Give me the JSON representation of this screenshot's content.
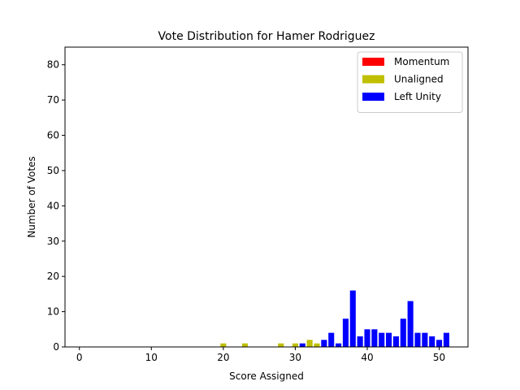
{
  "chart_data": {
    "type": "bar",
    "title": "Vote Distribution for Hamer Rodriguez",
    "xlabel": "Score Assigned",
    "ylabel": "Number of Votes",
    "xlim": [
      -2,
      54
    ],
    "ylim": [
      0,
      85
    ],
    "xticks": [
      0,
      10,
      20,
      30,
      40,
      50
    ],
    "yticks": [
      0,
      10,
      20,
      30,
      40,
      50,
      60,
      70,
      80
    ],
    "grid": false,
    "legend_position": "top-right",
    "series": [
      {
        "name": "Momentum",
        "color": "#ff0000",
        "points": []
      },
      {
        "name": "Unaligned",
        "color": "#bfbf00",
        "points": [
          {
            "x": 20,
            "y": 1
          },
          {
            "x": 23,
            "y": 1
          },
          {
            "x": 28,
            "y": 1
          },
          {
            "x": 30,
            "y": 1
          },
          {
            "x": 32,
            "y": 2
          },
          {
            "x": 33,
            "y": 1
          }
        ]
      },
      {
        "name": "Left Unity",
        "color": "#0000ff",
        "points": [
          {
            "x": 31,
            "y": 1
          },
          {
            "x": 34,
            "y": 2
          },
          {
            "x": 35,
            "y": 4
          },
          {
            "x": 36,
            "y": 1
          },
          {
            "x": 37,
            "y": 8
          },
          {
            "x": 38,
            "y": 16
          },
          {
            "x": 39,
            "y": 3
          },
          {
            "x": 40,
            "y": 5
          },
          {
            "x": 41,
            "y": 5
          },
          {
            "x": 42,
            "y": 4
          },
          {
            "x": 43,
            "y": 4
          },
          {
            "x": 44,
            "y": 3
          },
          {
            "x": 45,
            "y": 8
          },
          {
            "x": 46,
            "y": 13
          },
          {
            "x": 47,
            "y": 4
          },
          {
            "x": 48,
            "y": 4
          },
          {
            "x": 49,
            "y": 3
          },
          {
            "x": 50,
            "y": 2
          },
          {
            "x": 51,
            "y": 4
          }
        ]
      }
    ]
  }
}
